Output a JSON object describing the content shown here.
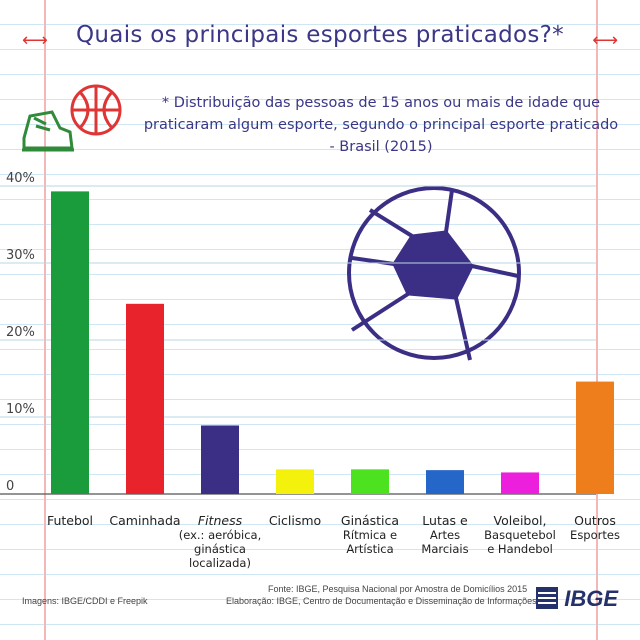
{
  "title": "Quais os principais esportes praticados?*",
  "subtitle": "* Distribuição das pessoas de 15 anos ou mais de idade que praticaram algum esporte, segundo o principal esporte praticado - Brasil (2015)",
  "footer": {
    "images_credit": "Imagens: IBGE/CDDI e Freepik",
    "source": "Fonte:  IBGE, Pesquisa Nacional por Amostra de Domicílios 2015",
    "elaboration": "Elaboração: IBGE, Centro de Documentação e Disseminação de Informações",
    "logo": "IBGE"
  },
  "chart_data": {
    "type": "bar",
    "title": "Quais os principais esportes praticados?*",
    "ylim": [
      0,
      40
    ],
    "yticks": [
      "0",
      "10%",
      "20%",
      "30%",
      "40%"
    ],
    "grid": true,
    "categories": [
      [
        "Futebol"
      ],
      [
        "Caminhada"
      ],
      [
        "Fitness",
        "(ex.: aeróbica,",
        "ginástica",
        "localizada)"
      ],
      [
        "Ciclismo"
      ],
      [
        "Ginástica",
        "Rítmica e",
        "Artística"
      ],
      [
        "Lutas e",
        "Artes",
        "Marciais"
      ],
      [
        "Voleibol,",
        "Basquetebol",
        "e Handebol"
      ],
      [
        "Outros",
        "Esportes"
      ]
    ],
    "values": [
      39.3,
      24.7,
      8.9,
      3.2,
      3.2,
      3.1,
      2.8,
      14.6
    ],
    "colors": [
      "#1a9b3c",
      "#e8232c",
      "#3b2f85",
      "#f4f20c",
      "#4de21f",
      "#2567c8",
      "#ec1fdd",
      "#ee7d1b"
    ]
  }
}
